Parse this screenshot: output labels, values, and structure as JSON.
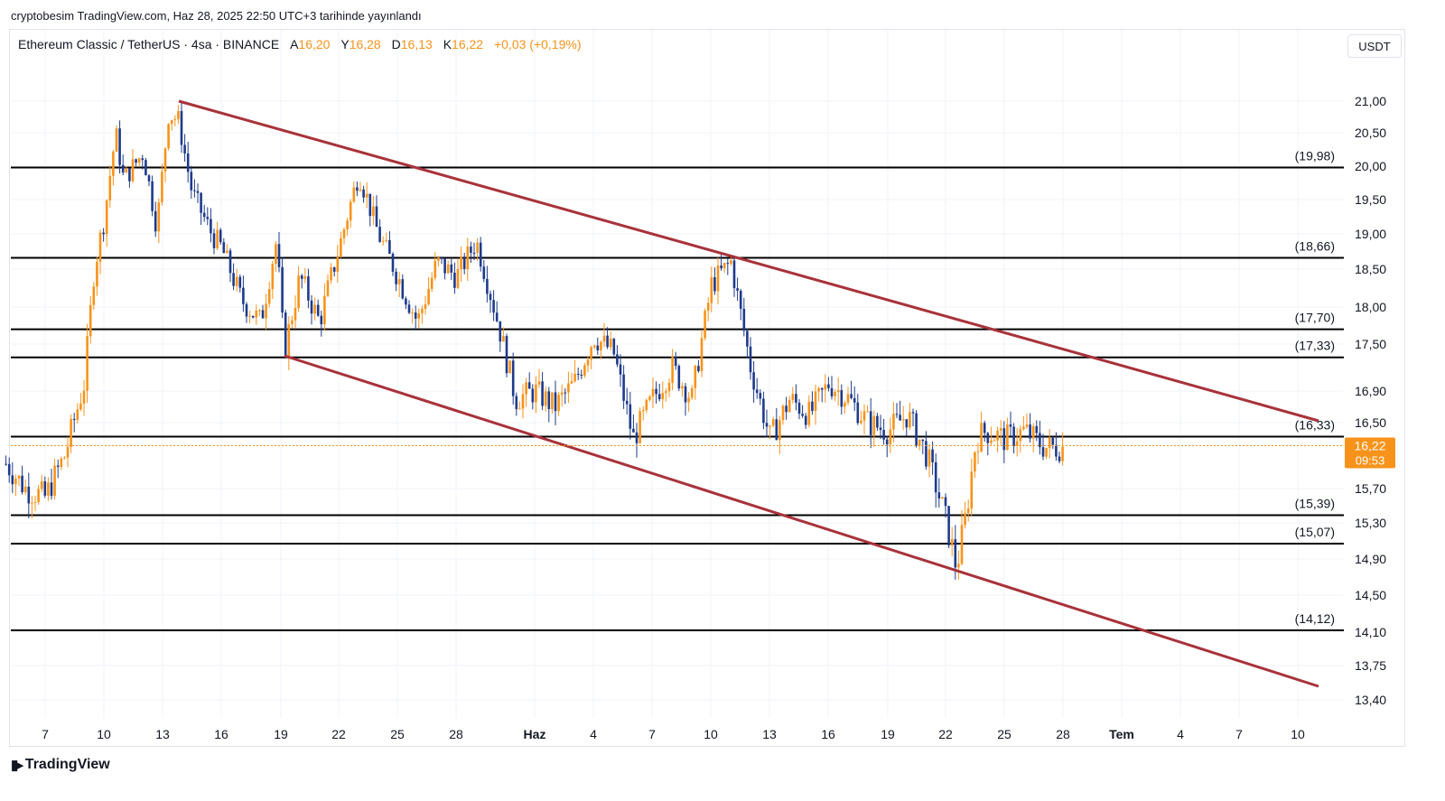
{
  "publication": "cryptobesim TradingView.com, Haz 28, 2025 22:50 UTC+3 tarihinde yayınlandı",
  "legend": {
    "symbol": "Ethereum Classic / TetherUS · 4sa · BINANCE",
    "open_label": "A",
    "open": "16,20",
    "high_label": "Y",
    "high": "16,28",
    "low_label": "D",
    "low": "16,13",
    "close_label": "K",
    "close": "16,22",
    "change": "+0,03 (+0,19%)"
  },
  "currency": "USDT",
  "brand": "TradingView",
  "colors": {
    "up": "#f7931a",
    "down": "#1e3a8a",
    "channel": "#a8323a",
    "level": "#000000",
    "grid": "#f0f3fa",
    "price_tag": "#f7931a"
  },
  "chart_data": {
    "type": "candlestick",
    "timeframe": "4sa",
    "x_ticks": [
      "7",
      "10",
      "13",
      "16",
      "19",
      "22",
      "25",
      "28",
      "Haz",
      "4",
      "7",
      "10",
      "13",
      "16",
      "19",
      "22",
      "25",
      "28",
      "Tem",
      "4",
      "7",
      "10"
    ],
    "x_bold": [
      "Haz",
      "Tem"
    ],
    "y_ticks": [
      {
        "v": 21.0,
        "label": "21,00"
      },
      {
        "v": 20.5,
        "label": "20,50"
      },
      {
        "v": 20.0,
        "label": "20,00"
      },
      {
        "v": 19.5,
        "label": "19,50"
      },
      {
        "v": 19.0,
        "label": "19,00"
      },
      {
        "v": 18.5,
        "label": "18,50"
      },
      {
        "v": 18.0,
        "label": "18,00"
      },
      {
        "v": 17.5,
        "label": "17,50"
      },
      {
        "v": 16.9,
        "label": "16,90"
      },
      {
        "v": 16.5,
        "label": "16,50"
      },
      {
        "v": 15.7,
        "label": "15,70"
      },
      {
        "v": 15.3,
        "label": "15,30"
      },
      {
        "v": 14.9,
        "label": "14,90"
      },
      {
        "v": 14.5,
        "label": "14,50"
      },
      {
        "v": 14.1,
        "label": "14,10"
      },
      {
        "v": 13.75,
        "label": "13,75"
      },
      {
        "v": 13.4,
        "label": "13,40"
      }
    ],
    "levels": [
      {
        "v": 19.98,
        "label": "(19,98)"
      },
      {
        "v": 18.66,
        "label": "(18,66)"
      },
      {
        "v": 17.7,
        "label": "(17,70)"
      },
      {
        "v": 17.33,
        "label": "(17,33)"
      },
      {
        "v": 16.33,
        "label": "(16,33)"
      },
      {
        "v": 15.39,
        "label": "(15,39)"
      },
      {
        "v": 15.07,
        "label": "(15,07)"
      },
      {
        "v": 14.12,
        "label": "(14,12)"
      }
    ],
    "channel": [
      {
        "from": {
          "date": "May 13",
          "price": 21.0
        },
        "to": {
          "date": "Jul 11",
          "price": 16.55
        }
      },
      {
        "from": {
          "date": "May 19",
          "price": 17.3
        },
        "to": {
          "date": "Jul 11",
          "price": 13.5
        }
      }
    ],
    "last_price": "16,22",
    "countdown": "09:53",
    "series_path": [
      [
        "May 5",
        16.0
      ],
      [
        "May 6",
        15.7
      ],
      [
        "May 7",
        15.6
      ],
      [
        "May 8",
        16.1
      ],
      [
        "May 9",
        17.0
      ],
      [
        "May 9.5",
        18.5
      ],
      [
        "May 10",
        19.2
      ],
      [
        "May 10.6",
        20.5
      ],
      [
        "May 11",
        19.8
      ],
      [
        "May 12",
        20.2
      ],
      [
        "May 12.7",
        19.1
      ],
      [
        "May 13.3",
        20.8
      ],
      [
        "May 13.8",
        20.7
      ],
      [
        "May 14.5",
        19.6
      ],
      [
        "May 15.5",
        19.0
      ],
      [
        "May 16",
        18.8
      ],
      [
        "May 17",
        18.1
      ],
      [
        "May 18",
        17.8
      ],
      [
        "May 18.8",
        18.9
      ],
      [
        "May 19.2",
        17.4
      ],
      [
        "May 20",
        18.4
      ],
      [
        "May 21",
        17.8
      ],
      [
        "May 22",
        18.8
      ],
      [
        "May 23",
        19.9
      ],
      [
        "May 24",
        19.0
      ],
      [
        "May 25",
        18.4
      ],
      [
        "May 26",
        17.8
      ],
      [
        "May 27",
        18.6
      ],
      [
        "May 28",
        18.4
      ],
      [
        "May 29",
        18.9
      ],
      [
        "May 30",
        17.9
      ],
      [
        "May 31",
        16.8
      ],
      [
        "Jun 1",
        16.9
      ],
      [
        "Jun 2",
        16.7
      ],
      [
        "Jun 3",
        17.0
      ],
      [
        "Jun 4",
        17.6
      ],
      [
        "Jun 5",
        17.4
      ],
      [
        "Jun 6",
        16.3
      ],
      [
        "Jun 7",
        16.8
      ],
      [
        "Jun 8",
        17.2
      ],
      [
        "Jun 9",
        16.8
      ],
      [
        "Jun 10",
        18.3
      ],
      [
        "Jun 11",
        18.6
      ],
      [
        "Jun 12",
        17.2
      ],
      [
        "Jun 13",
        16.3
      ],
      [
        "Jun 14",
        16.8
      ],
      [
        "Jun 15",
        16.6
      ],
      [
        "Jun 16",
        17.0
      ],
      [
        "Jun 17",
        16.8
      ],
      [
        "Jun 18",
        16.5
      ],
      [
        "Jun 19",
        16.4
      ],
      [
        "Jun 20",
        16.6
      ],
      [
        "Jun 21",
        16.1
      ],
      [
        "Jun 22",
        15.3
      ],
      [
        "Jun 22.5",
        14.8
      ],
      [
        "Jun 23",
        15.4
      ],
      [
        "Jun 23.5",
        16.3
      ],
      [
        "Jun 24",
        16.4
      ],
      [
        "Jun 25",
        16.3
      ],
      [
        "Jun 26",
        16.4
      ],
      [
        "Jun 27",
        16.2
      ],
      [
        "Jun 28",
        16.2
      ]
    ]
  }
}
